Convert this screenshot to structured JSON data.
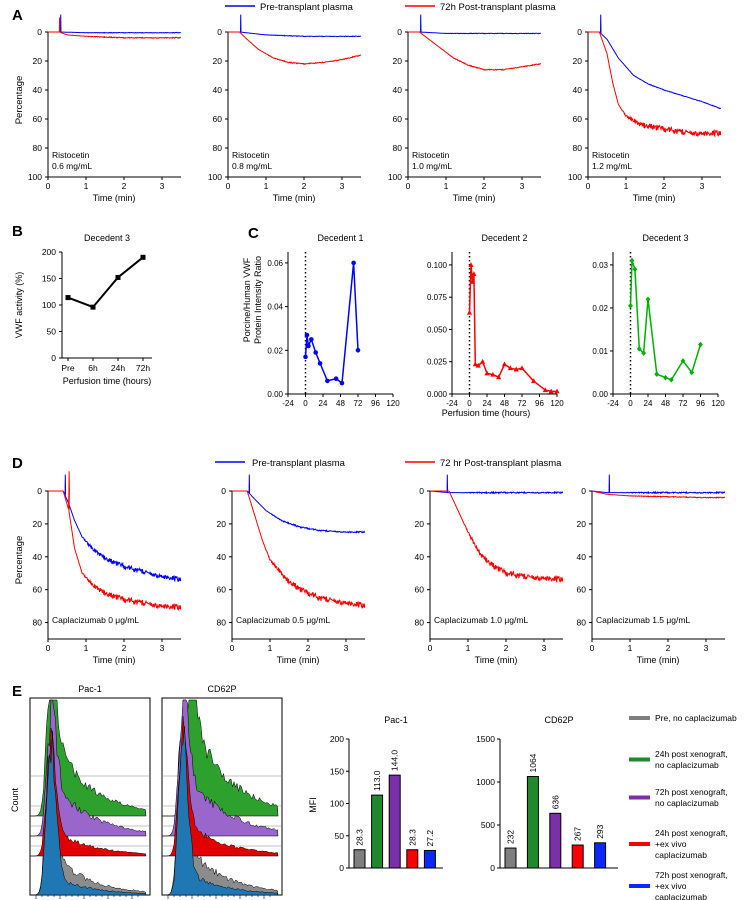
{
  "panel_letters": [
    "A",
    "B",
    "C",
    "D",
    "E"
  ],
  "panel_a": {
    "legend": {
      "blue": "Pre-transplant plasma",
      "red": "72h Post-transplant plasma"
    },
    "xlabel": "Time (min)",
    "ylabel": "Percentage",
    "xticks": [
      "0",
      "1",
      "2",
      "3"
    ],
    "yticks": [
      "0",
      "20",
      "40",
      "60",
      "80",
      "100"
    ],
    "labels": [
      [
        "Ristocetin",
        "0.6 mg/mL"
      ],
      [
        "Ristocetin",
        "0.8 mg/mL"
      ],
      [
        "Ristocetin",
        "1.0 mg/mL"
      ],
      [
        "Ristocetin",
        "1.2 mg/mL"
      ]
    ]
  },
  "panel_b": {
    "title": "Decedent 3",
    "ylabel": "VWF activity (%)",
    "xlabel": "Perfusion time (hours)",
    "yticks": [
      "0",
      "50",
      "100",
      "150",
      "200"
    ]
  },
  "panel_c": {
    "ylabel": [
      "Porcine/Human VWF",
      "Protein Intensity Ratio"
    ],
    "xlabel": "Perfusion time (hours)",
    "xticks": [
      "-24",
      "0",
      "24",
      "48",
      "72",
      "96",
      "120"
    ],
    "titles": [
      "Decedent 1",
      "Decedent 2",
      "Decedent 3"
    ],
    "yticks": [
      [
        "0.00",
        "0.02",
        "0.04",
        "0.06"
      ],
      [
        "0.000",
        "0.025",
        "0.050",
        "0.075",
        "0.100"
      ],
      [
        "0.00",
        "0.01",
        "0.02",
        "0.03"
      ]
    ]
  },
  "panel_d": {
    "legend": {
      "blue": "Pre-transplant plasma",
      "red": "72 hr Post-transplant plasma"
    },
    "xlabel": "Time (min)",
    "ylabel": "Percentage",
    "xticks": [
      "0",
      "1",
      "2",
      "3"
    ],
    "yticks": [
      "0",
      "20",
      "40",
      "60",
      "80"
    ],
    "labels": [
      "Caplacizumab 0 μg/mL",
      "Caplacizumab 0.5 μg/mL",
      "Caplacizumab 1.0 μg/mL",
      "Caplacizumab 1.5 μg/mL"
    ]
  },
  "panel_e": {
    "hist_titles": [
      "Pac-1",
      "CD62P"
    ],
    "count_label": "Count",
    "ylabel": "MFI",
    "bar_titles": [
      "Pac-1",
      "CD62P"
    ],
    "yticks_pac1": [
      "0",
      "50",
      "100",
      "150",
      "200"
    ],
    "yticks_cd62p": [
      "0",
      "500",
      "1000",
      "1500"
    ],
    "legend": [
      {
        "color": "#7f7f7f",
        "lines": [
          "Pre, no caplacizumab"
        ]
      },
      {
        "color": "#1f8a2c",
        "lines": [
          "24h post xenograft,",
          "no caplacizumab"
        ]
      },
      {
        "color": "#7b2fa8",
        "lines": [
          "72h post xenograft,",
          "no caplacizumab"
        ]
      },
      {
        "color": "#ff0000",
        "lines": [
          "24h post xenograft,",
          "+ex vivo",
          "caplacizumab"
        ]
      },
      {
        "color": "#0a28ff",
        "lines": [
          "72h post xenograft,",
          "+ex vivo",
          "caplacizumab"
        ]
      }
    ]
  },
  "colors": {
    "blue": "#0000ff",
    "red": "#ff0000",
    "green": "#00b000",
    "black": "#000000"
  },
  "chart_data": [
    {
      "type": "line",
      "panel": "A1",
      "ylim": [
        100,
        0
      ],
      "xlim": [
        0,
        3.5
      ],
      "series": [
        {
          "name": "Pre-transplant plasma",
          "x": [
            0,
            0.3,
            1,
            2,
            3,
            3.5
          ],
          "y": [
            0,
            0,
            0.5,
            0.5,
            0.5,
            0.5
          ]
        },
        {
          "name": "72h Post-transplant plasma",
          "x": [
            0,
            0.3,
            0.5,
            1,
            2,
            3,
            3.5
          ],
          "y": [
            0,
            0,
            2,
            3,
            4,
            4,
            4
          ]
        }
      ]
    },
    {
      "type": "line",
      "panel": "A2",
      "ylim": [
        100,
        0
      ],
      "xlim": [
        0,
        3.5
      ],
      "series": [
        {
          "name": "Pre-transplant plasma",
          "x": [
            0,
            0.3,
            1,
            2,
            3,
            3.5
          ],
          "y": [
            0,
            0,
            2,
            3,
            3,
            3
          ]
        },
        {
          "name": "72h Post-transplant plasma",
          "x": [
            0,
            0.3,
            0.5,
            0.8,
            1.2,
            1.6,
            2,
            2.5,
            3,
            3.5
          ],
          "y": [
            0,
            0,
            5,
            12,
            18,
            21,
            22,
            21,
            19,
            16
          ]
        }
      ]
    },
    {
      "type": "line",
      "panel": "A3",
      "ylim": [
        100,
        0
      ],
      "xlim": [
        0,
        3.5
      ],
      "series": [
        {
          "name": "Pre-transplant plasma",
          "x": [
            0,
            0.3,
            1,
            2,
            3,
            3.5
          ],
          "y": [
            0,
            0,
            1,
            1,
            1,
            1
          ]
        },
        {
          "name": "72h Post-transplant plasma",
          "x": [
            0,
            0.3,
            0.5,
            0.8,
            1.2,
            1.6,
            2,
            2.5,
            3,
            3.5
          ],
          "y": [
            0,
            0,
            4,
            10,
            18,
            23,
            26,
            26,
            24,
            22
          ]
        }
      ]
    },
    {
      "type": "line",
      "panel": "A4",
      "ylim": [
        100,
        0
      ],
      "xlim": [
        0,
        3.5
      ],
      "series": [
        {
          "name": "Pre-transplant plasma",
          "x": [
            0,
            0.3,
            0.5,
            0.8,
            1.2,
            1.6,
            2,
            2.5,
            3,
            3.5
          ],
          "y": [
            0,
            0,
            5,
            18,
            30,
            36,
            40,
            44,
            48,
            53
          ]
        },
        {
          "name": "72h Post-transplant plasma",
          "x": [
            0,
            0.3,
            0.5,
            0.65,
            0.8,
            1,
            1.3,
            1.8,
            2.5,
            3,
            3.5
          ],
          "y": [
            0,
            0,
            15,
            35,
            50,
            58,
            63,
            66,
            69,
            70,
            70
          ]
        }
      ]
    },
    {
      "type": "line",
      "panel": "B",
      "title": "Decedent 3",
      "categories": [
        "Pre",
        "6h",
        "24h",
        "72h"
      ],
      "ylim": [
        0,
        200
      ],
      "xlabel": "Perfusion time (hours)",
      "ylabel": "VWF activity (%)",
      "series": [
        {
          "values": [
            114,
            96,
            152,
            190
          ]
        }
      ]
    },
    {
      "type": "line",
      "panel": "C1",
      "title": "Decedent 1",
      "xlim": [
        -24,
        120
      ],
      "ylim": [
        0,
        0.065
      ],
      "series": [
        {
          "x": [
            0,
            2,
            4,
            8,
            14,
            20,
            30,
            42,
            50,
            66,
            72
          ],
          "y": [
            0.017,
            0.027,
            0.022,
            0.025,
            0.019,
            0.014,
            0.006,
            0.007,
            0.005,
            0.06,
            0.02
          ]
        }
      ]
    },
    {
      "type": "line",
      "panel": "C2",
      "title": "Decedent 2",
      "xlim": [
        -24,
        120
      ],
      "ylim": [
        0,
        0.11
      ],
      "series": [
        {
          "x": [
            0,
            2,
            4,
            6,
            8,
            12,
            18,
            24,
            32,
            40,
            48,
            56,
            64,
            72,
            88,
            104,
            112,
            120
          ],
          "y": [
            0.063,
            0.1,
            0.087,
            0.093,
            0.023,
            0.022,
            0.025,
            0.016,
            0.015,
            0.013,
            0.023,
            0.02,
            0.019,
            0.02,
            0.01,
            0.003,
            0.002,
            0.002
          ]
        }
      ]
    },
    {
      "type": "line",
      "panel": "C3",
      "title": "Decedent 3",
      "xlim": [
        -24,
        120
      ],
      "ylim": [
        0,
        0.033
      ],
      "series": [
        {
          "x": [
            0,
            2,
            6,
            12,
            18,
            24,
            36,
            48,
            56,
            72,
            84,
            96
          ],
          "y": [
            0.0205,
            0.031,
            0.029,
            0.0105,
            0.0095,
            0.022,
            0.0046,
            0.0038,
            0.0033,
            0.0077,
            0.005,
            0.0115
          ]
        }
      ]
    },
    {
      "type": "line",
      "panel": "D1",
      "ylim": [
        90,
        0
      ],
      "xlim": [
        0,
        3.5
      ],
      "series": [
        {
          "name": "Pre-transplant plasma",
          "x": [
            0,
            0.4,
            0.55,
            0.7,
            0.9,
            1.2,
            1.6,
            2,
            2.5,
            3,
            3.5
          ],
          "y": [
            0,
            0,
            8,
            18,
            28,
            36,
            42,
            46,
            49,
            52,
            54
          ]
        },
        {
          "name": "72 hr Post-transplant plasma",
          "x": [
            0,
            0.4,
            0.55,
            0.7,
            0.9,
            1.2,
            1.6,
            2,
            2.5,
            3,
            3.5
          ],
          "y": [
            0,
            0,
            12,
            35,
            50,
            58,
            63,
            66,
            68,
            70,
            71
          ]
        }
      ]
    },
    {
      "type": "line",
      "panel": "D2",
      "ylim": [
        90,
        0
      ],
      "xlim": [
        0,
        3.5
      ],
      "series": [
        {
          "name": "Pre-transplant plasma",
          "x": [
            0,
            0.4,
            0.6,
            0.9,
            1.3,
            1.8,
            2.3,
            3,
            3.5
          ],
          "y": [
            0,
            0,
            5,
            12,
            18,
            22,
            24,
            25,
            25
          ]
        },
        {
          "name": "72 hr Post-transplant plasma",
          "x": [
            0,
            0.4,
            0.6,
            0.8,
            1,
            1.4,
            1.8,
            2.3,
            3,
            3.5
          ],
          "y": [
            0,
            0,
            15,
            30,
            42,
            53,
            60,
            65,
            68,
            70
          ]
        }
      ]
    },
    {
      "type": "line",
      "panel": "D3",
      "ylim": [
        90,
        0
      ],
      "xlim": [
        0,
        3.5
      ],
      "series": [
        {
          "name": "Pre-transplant plasma",
          "x": [
            0,
            0.5,
            1,
            2,
            3,
            3.5
          ],
          "y": [
            0,
            1,
            1,
            1,
            1,
            1
          ]
        },
        {
          "name": "72 hr Post-transplant plasma",
          "x": [
            0,
            0.5,
            0.7,
            1,
            1.3,
            1.7,
            2,
            2.5,
            3,
            3.5
          ],
          "y": [
            0,
            0,
            10,
            25,
            38,
            46,
            50,
            52,
            53,
            54
          ]
        }
      ]
    },
    {
      "type": "line",
      "panel": "D4",
      "ylim": [
        90,
        0
      ],
      "xlim": [
        0,
        3.5
      ],
      "series": [
        {
          "name": "Pre-transplant plasma",
          "x": [
            0,
            0.4,
            1,
            2,
            3,
            3.5
          ],
          "y": [
            0,
            1,
            1,
            1,
            1,
            1
          ]
        },
        {
          "name": "72 hr Post-transplant plasma",
          "x": [
            0,
            0.4,
            1,
            2,
            3,
            3.5
          ],
          "y": [
            0,
            2,
            3,
            3.5,
            4,
            4
          ]
        }
      ]
    },
    {
      "type": "bar",
      "panel": "E-Pac-1",
      "title": "Pac-1",
      "ylabel": "MFI",
      "ylim": [
        0,
        200
      ],
      "categories": [
        "Pre, no caplacizumab",
        "24h post xenograft, no caplacizumab",
        "72h post xenograft, no caplacizumab",
        "24h post xenograft, +ex vivo caplacizumab",
        "72h post xenograft, +ex vivo caplacizumab"
      ],
      "values": [
        28.3,
        113.0,
        144.0,
        28.3,
        27.2
      ],
      "labels": [
        "28.3",
        "113.0",
        "144.0",
        "28.3",
        "27.2"
      ],
      "colors": [
        "#7f7f7f",
        "#1f8a2c",
        "#7b2fa8",
        "#ff0000",
        "#0a28ff"
      ]
    },
    {
      "type": "bar",
      "panel": "E-CD62P",
      "title": "CD62P",
      "ylim": [
        0,
        1500
      ],
      "categories": [
        "Pre, no caplacizumab",
        "24h post xenograft, no caplacizumab",
        "72h post xenograft, no caplacizumab",
        "24h post xenograft, +ex vivo caplacizumab",
        "72h post xenograft, +ex vivo caplacizumab"
      ],
      "values": [
        232,
        1064,
        636,
        267,
        293
      ],
      "labels": [
        "232",
        "1064",
        "636",
        "267",
        "293"
      ],
      "colors": [
        "#7f7f7f",
        "#1f8a2c",
        "#7b2fa8",
        "#ff0000",
        "#0a28ff"
      ]
    }
  ]
}
